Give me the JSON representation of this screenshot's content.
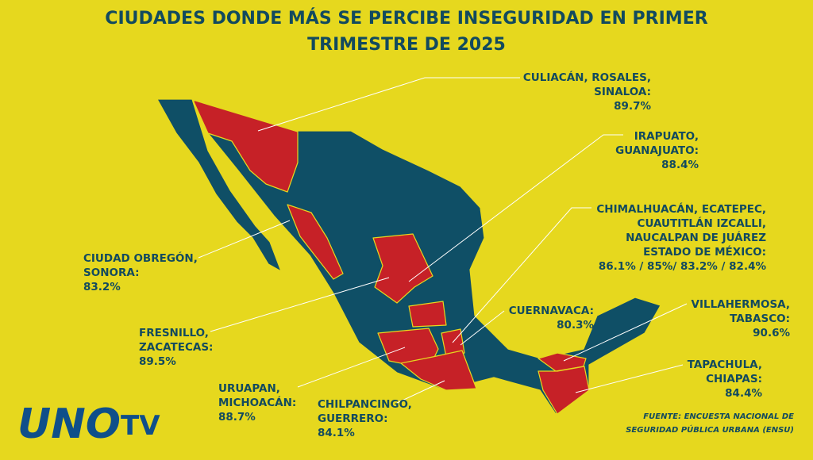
{
  "title": [
    "CIUDADES DONDE MÁS SE PERCIBE INSEGURIDAD EN PRIMER",
    "TRIMESTRE DE 2025"
  ],
  "labels": [
    {
      "lines": [
        "CULIACÁN, ROSALES,",
        "SINALOA:"
      ],
      "value": "89.7%"
    },
    {
      "lines": [
        "IRAPUATO,",
        "GUANAJUATO:"
      ],
      "value": "88.4%"
    },
    {
      "lines": [
        "CHIMALHUACÁN, ECATEPEC,",
        "CUAUTITLÁN IZCALLI,",
        "NAUCALPAN DE JUÁREZ",
        "ESTADO DE MÉXICO:"
      ],
      "value": "86.1% / 85%/ 83.2% / 82.4%"
    },
    {
      "lines": [
        "CIUDAD OBREGÓN,",
        "SONORA:"
      ],
      "value": "83.2%"
    },
    {
      "lines": [
        "FRESNILLO,",
        "ZACATECAS:"
      ],
      "value": "89.5%"
    },
    {
      "lines": [
        "URUAPAN,",
        "MICHOACÁN:"
      ],
      "value": "88.7%"
    },
    {
      "lines": [
        "CHILPANCINGO,",
        "GUERRERO:"
      ],
      "value": "84.1%"
    },
    {
      "lines": [
        "CUERNAVACA:"
      ],
      "value": "80.3%"
    },
    {
      "lines": [
        "VILLAHERMOSA,",
        "TABASCO:"
      ],
      "value": "90.6%"
    },
    {
      "lines": [
        "TAPACHULA,",
        "CHIAPAS:"
      ],
      "value": "84.4%"
    }
  ],
  "source": [
    "FUENTE: ENCUESTA NACIONAL DE",
    "SEGURIDAD PÚBLICA URBANA (ENSU)"
  ],
  "logo": {
    "uno": "UNO",
    "tv": "TV"
  }
}
